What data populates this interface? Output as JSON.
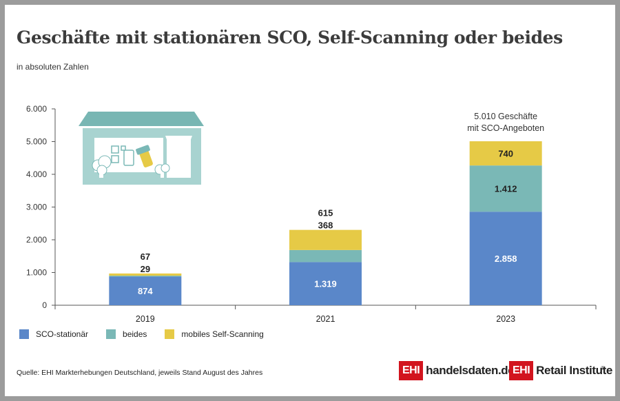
{
  "header": {
    "title": "Geschäfte mit stationären SCO, Self-Scanning oder beides",
    "subtitle": "in absoluten Zahlen"
  },
  "colors": {
    "sco_stationaer": "#5a87c9",
    "beides": "#7ab8b6",
    "mobiles": "#e6ca46",
    "house": "#a8d3d0",
    "roof": "#78b6b3"
  },
  "chart_data": {
    "type": "bar",
    "stacked": true,
    "categories": [
      "2019",
      "2021",
      "2023"
    ],
    "series": [
      {
        "name": "SCO-stationär",
        "values": [
          874,
          1319,
          2858
        ],
        "labels": [
          "874",
          "1.319",
          "2.858"
        ]
      },
      {
        "name": "beides",
        "values": [
          29,
          368,
          1412
        ],
        "labels": [
          "29",
          "368",
          "1.412"
        ]
      },
      {
        "name": "mobiles Self-Scanning",
        "values": [
          67,
          615,
          740
        ],
        "labels": [
          "67",
          "615",
          "740"
        ]
      }
    ],
    "ylim": [
      0,
      6000
    ],
    "yticks": [
      0,
      1000,
      2000,
      3000,
      4000,
      5000,
      6000
    ],
    "ytick_labels": [
      "0",
      "1.000",
      "2.000",
      "3.000",
      "4.000",
      "5.000",
      "6.000"
    ],
    "annotation": {
      "line1": "5.010 Geschäfte",
      "line2": "mit SCO-Angeboten"
    },
    "legend_position": "bottom-left"
  },
  "footer": {
    "source": "Quelle: EHI Markterhebungen Deutschland, jeweils Stand August des Jahres",
    "brand1_box": "EHI",
    "brand1_text": "handelsdaten.de",
    "brand2_box": "EHI",
    "brand2_text": "Retail Institute",
    "registered": "®"
  },
  "illustration": {
    "icon": "store-with-mobile-scanner-icon"
  }
}
